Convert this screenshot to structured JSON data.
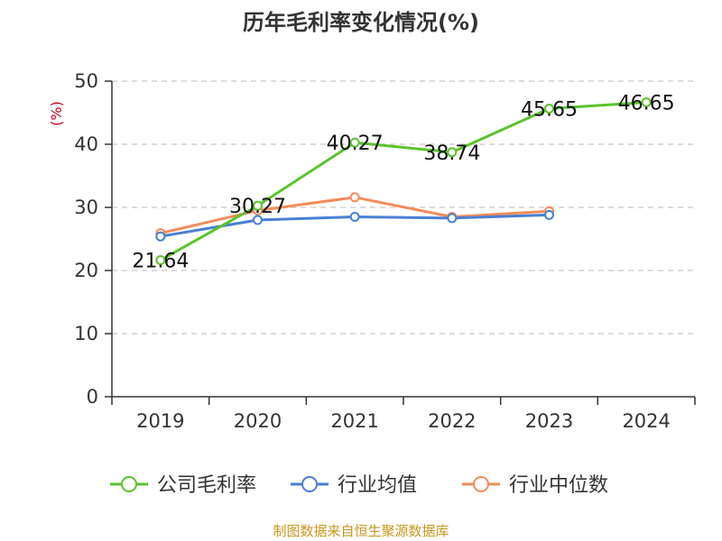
{
  "chart_data": {
    "type": "line",
    "title": "历年毛利率变化情况(%)",
    "ylabel": "(%)",
    "categories": [
      "2019",
      "2020",
      "2021",
      "2022",
      "2023",
      "2024"
    ],
    "ylim": [
      0,
      50
    ],
    "yticks": [
      "0",
      "10",
      "20",
      "30",
      "40",
      "50"
    ],
    "grid": true,
    "legend_position": "bottom",
    "series": [
      {
        "name": "公司毛利率",
        "color": "#5bc32c",
        "values": [
          21.64,
          30.27,
          40.27,
          38.74,
          45.65,
          46.65
        ],
        "labels": [
          "21.64",
          "30.27",
          "40.27",
          "38.74",
          "45.65",
          "46.65"
        ]
      },
      {
        "name": "行业均值",
        "color": "#4a7fd4",
        "values": [
          25.4,
          28.0,
          28.5,
          28.3,
          28.8,
          null
        ]
      },
      {
        "name": "行业中位数",
        "color": "#f28c5b",
        "values": [
          25.9,
          29.5,
          31.6,
          28.5,
          29.4,
          null
        ]
      }
    ]
  },
  "footer": {
    "source": "制图数据来自恒生聚源数据库",
    "source_color": "#c8961e"
  }
}
